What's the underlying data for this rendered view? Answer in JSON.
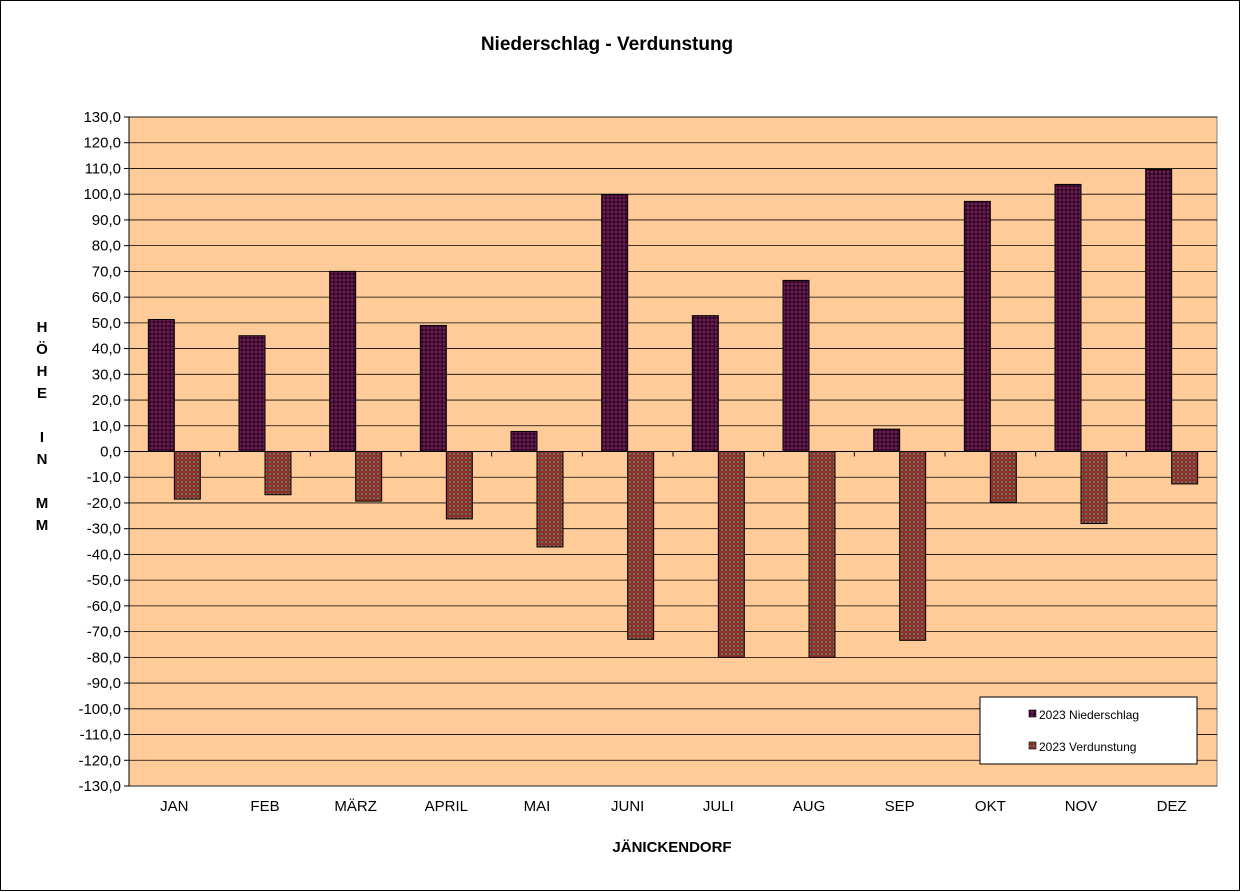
{
  "chart_data": {
    "type": "bar",
    "title": "Niederschlag  -  Verdunstung",
    "xlabel": "JÄNICKENDORF",
    "ylabel": "HÖHE IN MM",
    "ylabel_lines": [
      "H",
      "Ö",
      "H",
      "E",
      "",
      "I",
      "N",
      "",
      "M",
      "M"
    ],
    "ylim": [
      -130,
      130
    ],
    "ytick_step": 10,
    "grid": true,
    "legend_position": "bottom-right",
    "plot_background": "#FFCC99",
    "categories": [
      "JAN",
      "FEB",
      "MÄRZ",
      "APRIL",
      "MAI",
      "JUNI",
      "JULI",
      "AUG",
      "SEP",
      "OKT",
      "NOV",
      "DEZ"
    ],
    "series": [
      {
        "name": "2023 Niederschlag",
        "color": "#4B0F3A",
        "values": [
          51.3,
          45.0,
          70.0,
          49.0,
          7.8,
          99.8,
          52.8,
          66.5,
          8.7,
          97.2,
          103.8,
          109.6
        ]
      },
      {
        "name": "2023 Verdunstung",
        "color": "#8B2A1F",
        "values": [
          -18.5,
          -16.8,
          -19.3,
          -26.2,
          -37.1,
          -73.0,
          -80.0,
          -80.0,
          -73.4,
          -19.8,
          -28.0,
          -12.6
        ]
      }
    ]
  }
}
